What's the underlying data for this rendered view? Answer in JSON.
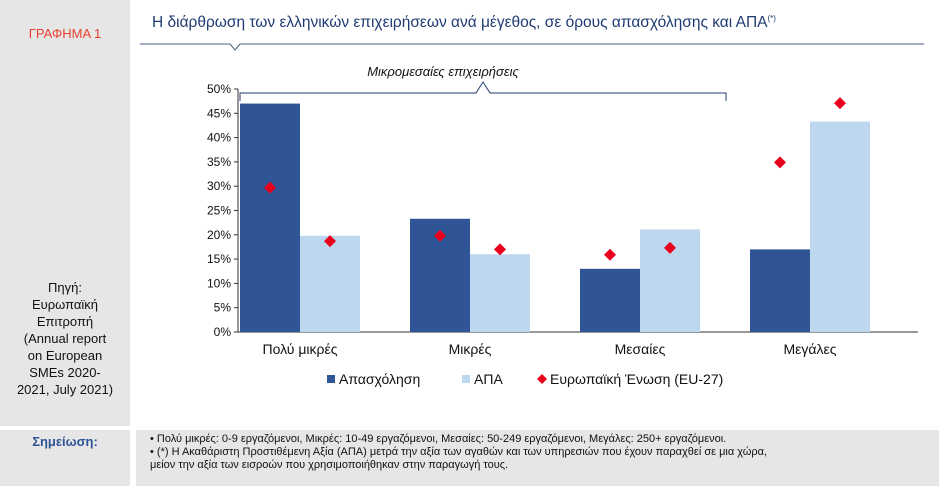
{
  "sidebar": {
    "chart_label": "ΓΡΑΦΗΜΑ 1",
    "source_lines": [
      "Πηγή:",
      "Ευρωπαϊκή",
      "Επιτροπή",
      "(Annual report",
      "on European",
      "SMEs 2020-",
      "2021, July 2021)"
    ],
    "note_label": "Σημείωση:"
  },
  "chart_data": {
    "type": "bar",
    "title": "Η διάρθρωση των ελληνικών επιχειρήσεων ανά μέγεθος, σε όρους απασχόλησης και ΑΠΑ",
    "title_sup": "(*)",
    "categories": [
      "Πολύ μικρές",
      "Μικρές",
      "Μεσαίες",
      "Μεγάλες"
    ],
    "series": [
      {
        "name": "Απασχόληση",
        "type": "bar",
        "color": "#2f5597",
        "values": [
          47,
          23.3,
          13,
          17
        ]
      },
      {
        "name": "ΑΠΑ",
        "type": "bar",
        "color": "#bdd7ee",
        "values": [
          19.8,
          16,
          21.1,
          43.3
        ]
      }
    ],
    "markers": [
      {
        "name": "Ευρωπαϊκή Ένωση (EU-27)",
        "color": "#e8001c",
        "bar_values": [
          29.7,
          19.8,
          15.9,
          34.9
        ],
        "apa_values": [
          18.7,
          17,
          17.3,
          47.1
        ]
      }
    ],
    "ylim": [
      0,
      50
    ],
    "yticks": [
      "0%",
      "5%",
      "10%",
      "15%",
      "20%",
      "25%",
      "30%",
      "35%",
      "40%",
      "45%",
      "50%"
    ],
    "annotation": "Μικρομεσαίες επιχειρήσεις",
    "legend_position": "bottom",
    "grid": false
  },
  "notes": [
    "• Πολύ μικρές: 0-9 εργαζόμενοι, Μικρές: 10-49 εργαζόμενοι, Μεσαίες: 50-249 εργαζόμενοι, Μεγάλες: 250+ εργαζόμενοι.",
    "• (*) Η Ακαθάριστη Προστιθέμενη Αξία (ΑΠΑ) μετρά την αξία των αγαθών και των υπηρεσιών που έχουν παραχθεί σε μια χώρα,",
    "μείον την αξία των εισροών που χρησιμοποιήθηκαν στην παραγωγή τους."
  ]
}
